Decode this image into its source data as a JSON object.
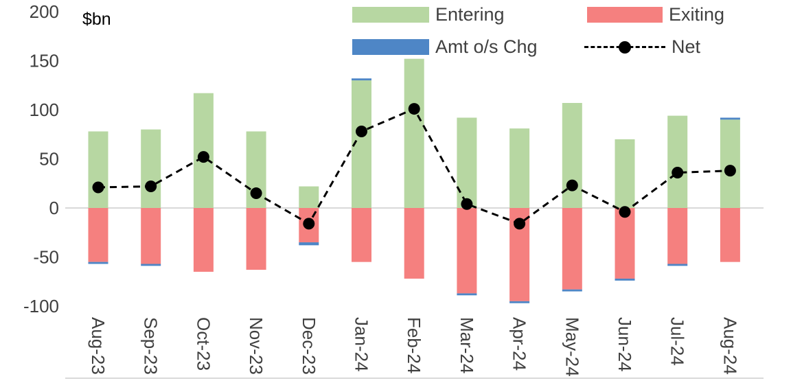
{
  "chart_data": {
    "type": "bar",
    "title": "",
    "ylabel": "$bn",
    "ylim": [
      -100,
      200
    ],
    "yticks": [
      -100,
      -50,
      0,
      50,
      100,
      150,
      200
    ],
    "grid": "zero-line-only",
    "legend_position": "top",
    "categories": [
      "Aug-23",
      "Sep-23",
      "Oct-23",
      "Nov-23",
      "Dec-23",
      "Jan-24",
      "Feb-24",
      "Mar-24",
      "Apr-24",
      "May-24",
      "Jun-24",
      "Jul-24",
      "Aug-24"
    ],
    "series": [
      {
        "name": "Entering",
        "type": "bar",
        "color": "#b7d7a2",
        "values": [
          78,
          80,
          117,
          78,
          22,
          130,
          152,
          92,
          81,
          107,
          70,
          94,
          90
        ]
      },
      {
        "name": "Exiting",
        "type": "bar",
        "color": "#f5807f",
        "values": [
          -55,
          -57,
          -65,
          -63,
          -35,
          -55,
          -72,
          -87,
          -95,
          -83,
          -72,
          -57,
          -55
        ]
      },
      {
        "name": "Amt o/s Chg",
        "type": "bar",
        "color": "#4e86c6",
        "values": [
          -2,
          -2,
          0,
          0,
          -3,
          2,
          0,
          -2,
          -2,
          -2,
          -2,
          -2,
          2
        ]
      },
      {
        "name": "Net",
        "type": "line",
        "color": "#000000",
        "style": "dashed-with-markers",
        "values": [
          21,
          22,
          52,
          15,
          -16,
          78,
          101,
          4,
          -16,
          23,
          -4,
          36,
          38
        ]
      }
    ],
    "colors": {
      "gridline": "#d9d9d9",
      "axis_text": "#404040"
    }
  }
}
